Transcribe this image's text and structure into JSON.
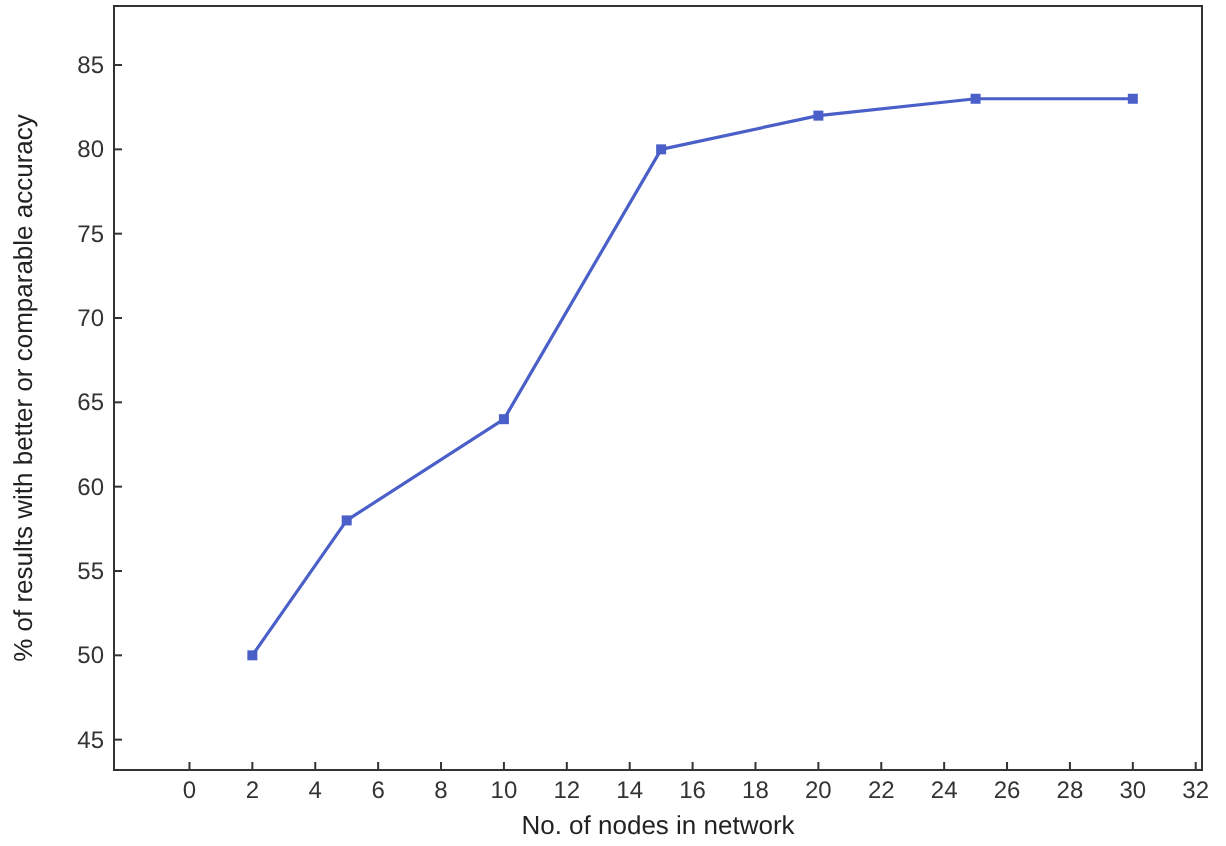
{
  "chart_data": {
    "type": "line",
    "xlabel": "No. of nodes in network",
    "ylabel": "% of results with better or comparable accuracy",
    "x": [
      2,
      5,
      10,
      15,
      20,
      25,
      30
    ],
    "series": [
      {
        "color": "#4a5fc8",
        "values": [
          50,
          58,
          64,
          80,
          82,
          83,
          83
        ]
      }
    ],
    "xlim": [
      -2.4,
      32.2
    ],
    "xticks": [
      0,
      2,
      4,
      6,
      8,
      10,
      12,
      14,
      16,
      18,
      20,
      22,
      24,
      26,
      28,
      30,
      32
    ],
    "ylim": [
      43.2,
      88.5
    ],
    "yticks": [
      45,
      50,
      55,
      60,
      65,
      70,
      75,
      80,
      85
    ],
    "marker": "square",
    "line_style": "solid",
    "grid": false
  }
}
